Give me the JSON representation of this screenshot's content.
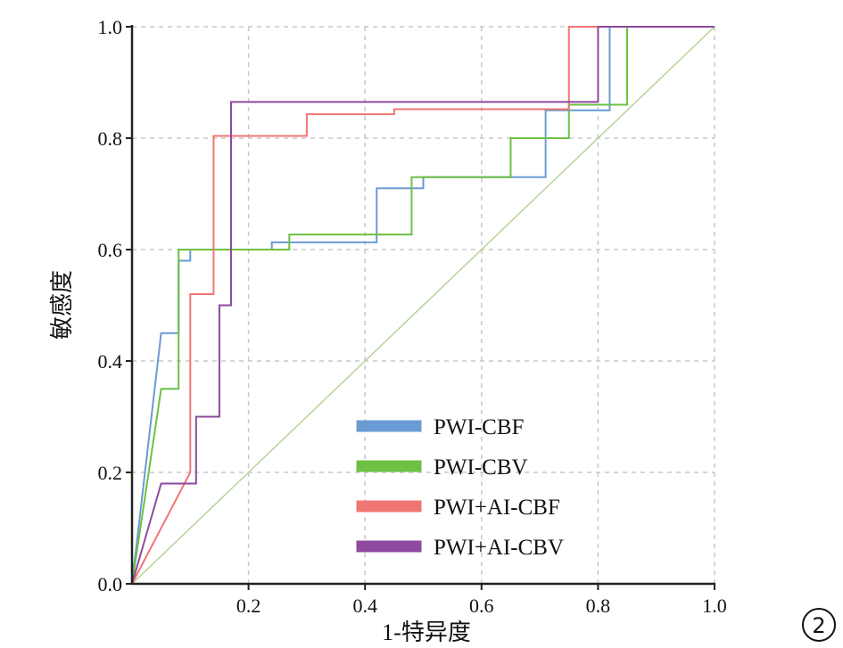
{
  "chart_data": {
    "type": "line",
    "title": "",
    "xlabel": "1-特异度",
    "ylabel": "敏感度",
    "xlim": [
      0,
      1
    ],
    "ylim": [
      0,
      1
    ],
    "xticks": [
      "0.2",
      "0.4",
      "0.6",
      "0.8",
      "1.0"
    ],
    "yticks": [
      "0.0",
      "0.2",
      "0.4",
      "0.6",
      "0.8",
      "1.0"
    ],
    "grid": true,
    "legend_position": "bottom-right",
    "panel_label": "②",
    "reference_line": {
      "x": [
        0,
        1
      ],
      "y": [
        0,
        1
      ],
      "color": "#b9d69e"
    },
    "series": [
      {
        "name": "PWI-CBF",
        "color": "#6a9bd3",
        "x": [
          0,
          0.05,
          0.08,
          0.08,
          0.1,
          0.1,
          0.24,
          0.24,
          0.42,
          0.42,
          0.5,
          0.5,
          0.71,
          0.71,
          0.82,
          0.82,
          1
        ],
        "y": [
          0,
          0.45,
          0.45,
          0.58,
          0.58,
          0.6,
          0.6,
          0.613,
          0.613,
          0.71,
          0.71,
          0.73,
          0.73,
          0.85,
          0.85,
          1,
          1
        ]
      },
      {
        "name": "PWI-CBV",
        "color": "#6cc043",
        "x": [
          0,
          0.05,
          0.08,
          0.08,
          0.27,
          0.27,
          0.48,
          0.48,
          0.65,
          0.65,
          0.75,
          0.75,
          0.85,
          0.85,
          1
        ],
        "y": [
          0,
          0.35,
          0.35,
          0.6,
          0.6,
          0.627,
          0.627,
          0.73,
          0.73,
          0.8,
          0.8,
          0.86,
          0.86,
          1,
          1
        ]
      },
      {
        "name": "PWI+AI-CBF",
        "color": "#f07673",
        "x": [
          0,
          0.1,
          0.1,
          0.14,
          0.14,
          0.3,
          0.3,
          0.45,
          0.45,
          0.75,
          0.75,
          1
        ],
        "y": [
          0,
          0.2,
          0.52,
          0.52,
          0.804,
          0.804,
          0.843,
          0.843,
          0.852,
          0.852,
          1,
          1
        ]
      },
      {
        "name": "PWI+AI-CBV",
        "color": "#8e4a9e",
        "x": [
          0,
          0.05,
          0.11,
          0.11,
          0.15,
          0.15,
          0.17,
          0.17,
          0.8,
          0.8,
          1
        ],
        "y": [
          0,
          0.18,
          0.18,
          0.3,
          0.3,
          0.5,
          0.5,
          0.865,
          0.865,
          1,
          1
        ]
      }
    ]
  }
}
